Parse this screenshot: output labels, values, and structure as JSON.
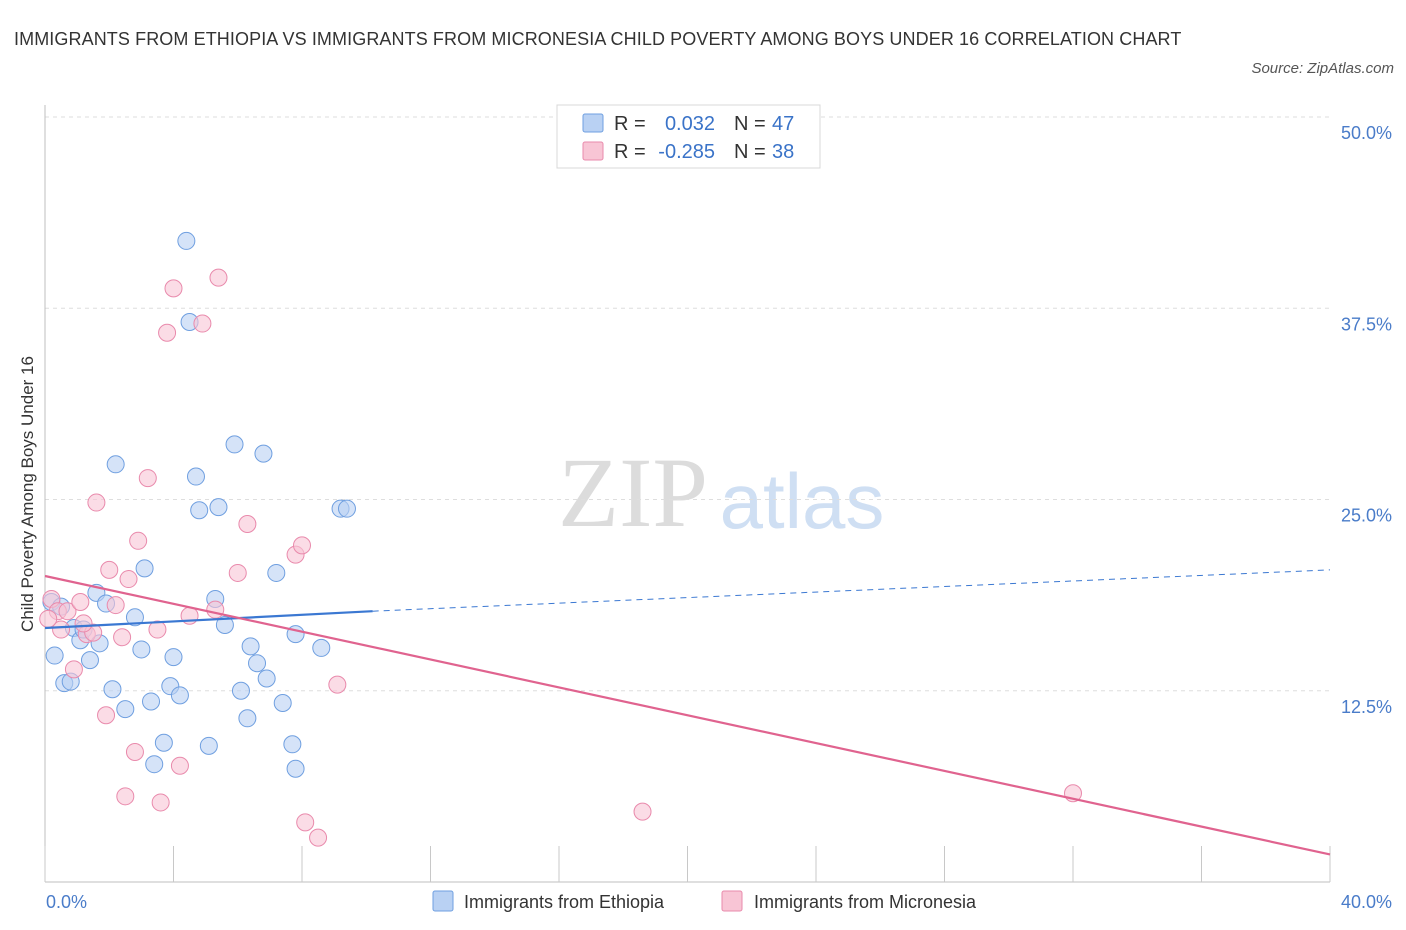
{
  "title": "IMMIGRANTS FROM ETHIOPIA VS IMMIGRANTS FROM MICRONESIA CHILD POVERTY AMONG BOYS UNDER 16 CORRELATION CHART",
  "source": "Source: ZipAtlas.com",
  "watermark": {
    "zip": "ZIP",
    "atlas": "atlas"
  },
  "legend": {
    "rows": [
      {
        "r_label": "R =",
        "r_value": "0.032",
        "n_label": "N =",
        "n_value": "47"
      },
      {
        "r_label": "R =",
        "r_value": "-0.285",
        "n_label": "N =",
        "n_value": "38"
      }
    ]
  },
  "chart_data": {
    "type": "scatter",
    "title": "IMMIGRANTS FROM ETHIOPIA VS IMMIGRANTS FROM MICRONESIA CHILD POVERTY AMONG BOYS UNDER 16 CORRELATION CHART",
    "xlabel": "",
    "ylabel": "Child Poverty Among Boys Under 16",
    "xlim": [
      0,
      40
    ],
    "ylim": [
      0,
      50
    ],
    "x_tick_labels": [
      "0.0%",
      "40.0%"
    ],
    "y_tick_labels": [
      "12.5%",
      "25.0%",
      "37.5%",
      "50.0%"
    ],
    "y_ticks": [
      12.5,
      25,
      37.5,
      50
    ],
    "grid": "horizontal dashed",
    "legend_position": "top-center",
    "series": [
      {
        "name": "Immigrants from Ethiopia",
        "color": "#6f9fe0",
        "fill": "#b9d1f3",
        "trend": {
          "x": [
            0,
            10.2
          ],
          "y": [
            16.6,
            17.7
          ],
          "extended_to": [
            40,
            20.4
          ]
        },
        "points": [
          [
            0.2,
            18.3
          ],
          [
            0.3,
            14.8
          ],
          [
            0.5,
            18.0
          ],
          [
            0.6,
            13.0
          ],
          [
            0.8,
            13.1
          ],
          [
            0.9,
            16.6
          ],
          [
            1.1,
            15.8
          ],
          [
            1.2,
            16.5
          ],
          [
            1.4,
            14.5
          ],
          [
            1.6,
            18.9
          ],
          [
            1.7,
            15.6
          ],
          [
            1.9,
            18.2
          ],
          [
            2.1,
            12.6
          ],
          [
            2.2,
            27.3
          ],
          [
            2.5,
            11.3
          ],
          [
            2.8,
            17.3
          ],
          [
            3.0,
            15.2
          ],
          [
            3.1,
            20.5
          ],
          [
            3.3,
            11.8
          ],
          [
            3.4,
            7.7
          ],
          [
            3.7,
            9.1
          ],
          [
            3.9,
            12.8
          ],
          [
            4.0,
            14.7
          ],
          [
            4.2,
            12.2
          ],
          [
            4.4,
            41.9
          ],
          [
            4.5,
            36.6
          ],
          [
            4.7,
            26.5
          ],
          [
            4.8,
            24.3
          ],
          [
            5.1,
            8.9
          ],
          [
            5.3,
            18.5
          ],
          [
            5.4,
            24.5
          ],
          [
            5.6,
            16.8
          ],
          [
            5.9,
            28.6
          ],
          [
            6.1,
            12.5
          ],
          [
            6.3,
            10.7
          ],
          [
            6.4,
            15.4
          ],
          [
            6.6,
            14.3
          ],
          [
            6.8,
            28.0
          ],
          [
            6.9,
            13.3
          ],
          [
            7.2,
            20.2
          ],
          [
            7.4,
            11.7
          ],
          [
            7.7,
            9.0
          ],
          [
            7.8,
            7.4
          ],
          [
            7.8,
            16.2
          ],
          [
            8.6,
            15.3
          ],
          [
            9.2,
            24.4
          ],
          [
            9.4,
            24.4
          ]
        ]
      },
      {
        "name": "Immigrants from Micronesia",
        "color": "#e98aac",
        "fill": "#f8c5d5",
        "trend": {
          "x": [
            0,
            40
          ],
          "y": [
            20.0,
            1.8
          ]
        },
        "points": [
          [
            0.2,
            18.5
          ],
          [
            0.4,
            17.7
          ],
          [
            0.5,
            16.5
          ],
          [
            0.7,
            17.7
          ],
          [
            0.9,
            13.9
          ],
          [
            1.1,
            18.3
          ],
          [
            1.3,
            16.2
          ],
          [
            1.5,
            16.3
          ],
          [
            1.6,
            24.8
          ],
          [
            1.9,
            10.9
          ],
          [
            2.0,
            20.4
          ],
          [
            2.2,
            18.1
          ],
          [
            2.4,
            16.0
          ],
          [
            2.5,
            5.6
          ],
          [
            2.6,
            19.8
          ],
          [
            2.8,
            8.5
          ],
          [
            2.9,
            22.3
          ],
          [
            3.2,
            26.4
          ],
          [
            3.5,
            16.5
          ],
          [
            3.6,
            5.2
          ],
          [
            3.8,
            35.9
          ],
          [
            4.0,
            38.8
          ],
          [
            4.2,
            7.6
          ],
          [
            4.5,
            17.4
          ],
          [
            4.9,
            36.5
          ],
          [
            5.3,
            17.8
          ],
          [
            5.4,
            39.5
          ],
          [
            6.0,
            20.2
          ],
          [
            6.3,
            23.4
          ],
          [
            7.8,
            21.4
          ],
          [
            8.0,
            22.0
          ],
          [
            8.1,
            3.9
          ],
          [
            8.5,
            2.9
          ],
          [
            9.1,
            12.9
          ],
          [
            18.6,
            4.6
          ],
          [
            32.0,
            5.8
          ],
          [
            1.2,
            16.9
          ],
          [
            0.1,
            17.2
          ]
        ]
      }
    ]
  }
}
